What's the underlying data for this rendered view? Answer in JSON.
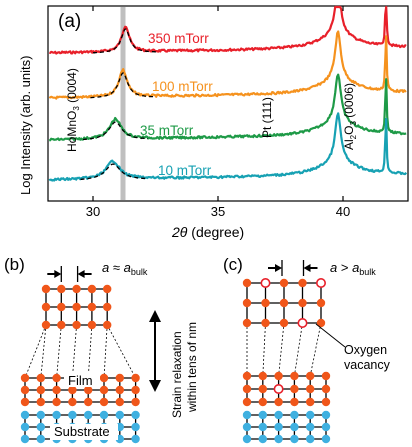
{
  "figure": {
    "panel_a": "(a)",
    "panel_b": "(b)",
    "panel_c": "(c)",
    "ylabel": "Log Intensity (arb. units)",
    "xlabel_theta": "2θ",
    "xlabel_unit": "(degree)",
    "peak_hmo": "HoMnO",
    "peak_hmo_sub": "3",
    "peak_hmo_idx": "(0004)",
    "peak_pt": "Pt (111)",
    "peak_al": "Al",
    "peak_al_sub1": "2",
    "peak_al_o": "O",
    "peak_al_sub2": "3",
    "peak_al_idx": "(0006)"
  },
  "panel_b": {
    "a_sym": "a",
    "approx": " ≈ ",
    "a_bulk": "a",
    "bulk_sub": "bulk",
    "strain_line1": "Strain relaxation",
    "strain_line2": "within tens of nm",
    "film": "Film",
    "substrate": "Substrate"
  },
  "panel_c": {
    "a_sym": "a",
    "gt": " > ",
    "a_bulk": "a",
    "bulk_sub": "bulk",
    "vacancy_line1": "Oxygen",
    "vacancy_line2": "vacancy"
  },
  "colors": {
    "p350": "#e8202a",
    "p100": "#f5921e",
    "p35": "#1e9a47",
    "p10": "#17a1b3",
    "atom_orange": "#f0561a",
    "atom_blue": "#3fb0e0",
    "vacancy": "#e8202a",
    "fit": "#000000"
  },
  "chart_data": {
    "type": "line",
    "x_axis": {
      "xlim": [
        28.2,
        42.6
      ],
      "ticks": [
        30,
        35,
        40
      ]
    },
    "y_axis": {
      "scale": "log",
      "ticks_labeled": false
    },
    "log_scale": true,
    "grid": false,
    "legend": "none",
    "series": [
      {
        "name": "350 mTorr",
        "color": "#e8202a",
        "peak_center": 31.3,
        "offset": 3
      },
      {
        "name": "100 mTorr",
        "color": "#f5921e",
        "peak_center": 31.2,
        "offset": 2
      },
      {
        "name": "35 mTorr",
        "color": "#1e9a47",
        "peak_center": 30.9,
        "offset": 1
      },
      {
        "name": "10 mTorr",
        "color": "#17a1b3",
        "peak_center": 30.8,
        "offset": 0
      }
    ],
    "bulk_reference_line_x": 31.2,
    "other_peaks": [
      {
        "label": "Pt (111)",
        "x": 39.8
      },
      {
        "label": "Al2O3 (0006)",
        "x": 41.7
      }
    ]
  }
}
